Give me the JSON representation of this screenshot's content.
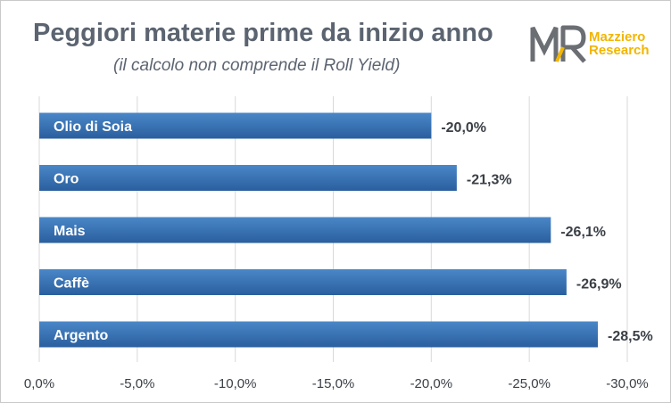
{
  "header": {
    "title": "Peggiori materie prime da inizio anno",
    "subtitle": "(il calcolo non comprende il Roll Yield)"
  },
  "logo": {
    "monogram": "MR",
    "line1": "Mazziero",
    "line2": "Research"
  },
  "colors": {
    "bar_top": "#4a87c8",
    "bar_bottom": "#2a5f9e",
    "text": "#3a3f46",
    "grid": "#d9d9d9",
    "logo_gray": "#6b6e73",
    "logo_accent": "#f2b500"
  },
  "chart_data": {
    "type": "bar",
    "orientation": "horizontal",
    "title": "Peggiori materie prime da inizio anno",
    "subtitle": "(il calcolo non comprende il Roll Yield)",
    "categories": [
      "Olio di Soia",
      "Oro",
      "Mais",
      "Caffè",
      "Argento"
    ],
    "values": [
      -20.0,
      -21.3,
      -26.1,
      -26.9,
      -28.5
    ],
    "data_labels": [
      "-20,0%",
      "-21,3%",
      "-26,1%",
      "-26,9%",
      "-28,5%"
    ],
    "xlim": [
      0,
      -30
    ],
    "x_ticks": [
      0,
      -5,
      -10,
      -15,
      -20,
      -25,
      -30
    ],
    "x_tick_labels": [
      "0,0%",
      "-5,0%",
      "-10,0%",
      "-15,0%",
      "-20,0%",
      "-25,0%",
      "-30,0%"
    ],
    "xlabel": "",
    "ylabel": "",
    "grid": "vertical",
    "legend": "none"
  }
}
